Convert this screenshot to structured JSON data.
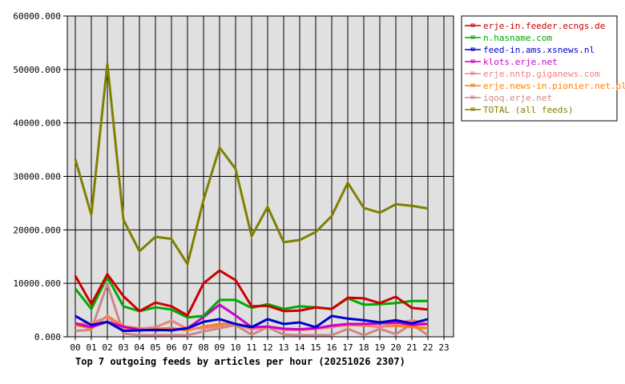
{
  "chart_data": {
    "type": "line",
    "title": "Top 7 outgoing feeds by articles per hour (20251026 2307)",
    "xlabel": "",
    "ylabel": "",
    "ylim": [
      0,
      60000
    ],
    "y_ticks": [
      "0.000",
      "10000.000",
      "20000.000",
      "30000.000",
      "40000.000",
      "50000.000",
      "60000.000"
    ],
    "categories": [
      "00",
      "01",
      "02",
      "03",
      "04",
      "05",
      "06",
      "07",
      "08",
      "09",
      "10",
      "11",
      "12",
      "13",
      "14",
      "15",
      "16",
      "17",
      "18",
      "19",
      "20",
      "21",
      "22",
      "23"
    ],
    "grid": true,
    "legend_position": "right",
    "series": [
      {
        "name": "erje-in.feeder.ecngs.de",
        "color": "#cc0000",
        "values": [
          11400,
          6100,
          11700,
          7600,
          4800,
          6400,
          5700,
          4000,
          10000,
          12400,
          10600,
          5700,
          5800,
          4800,
          4900,
          5500,
          5200,
          7300,
          7200,
          6300,
          7500,
          5400,
          5100
        ]
      },
      {
        "name": "n.hasname.com",
        "color": "#00aa00",
        "values": [
          9000,
          5200,
          11200,
          5700,
          4800,
          5500,
          5100,
          3600,
          3900,
          6900,
          6900,
          5400,
          6100,
          5200,
          5700,
          5500,
          5200,
          7200,
          6000,
          6100,
          6300,
          6700,
          6700
        ]
      },
      {
        "name": "feed-in.ams.xsnews.nl",
        "color": "#0000cc",
        "values": [
          3900,
          2200,
          2800,
          1100,
          1200,
          1300,
          1200,
          1600,
          2800,
          3300,
          2400,
          1800,
          3300,
          2400,
          2700,
          1800,
          3900,
          3400,
          3100,
          2700,
          3100,
          2500,
          3300
        ]
      },
      {
        "name": "klots.erje.net",
        "color": "#cc00cc",
        "values": [
          2500,
          1800,
          2800,
          1900,
          1300,
          1200,
          1300,
          1600,
          3700,
          6000,
          4000,
          1800,
          1900,
          1500,
          1400,
          1600,
          2100,
          2400,
          2400,
          2500,
          2700,
          2200,
          2400
        ]
      },
      {
        "name": "erje.nntp.giganews.com",
        "color": "#f08080",
        "values": [
          2400,
          2500,
          3700,
          1500,
          1500,
          1800,
          3000,
          1500,
          1600,
          2000,
          2400,
          1400,
          1900,
          1300,
          1300,
          1500,
          1800,
          2400,
          2200,
          1800,
          2500,
          3100,
          2400
        ]
      },
      {
        "name": "erje.news-in.pionier.net.pl",
        "color": "#ff8000",
        "values": [
          2200,
          1600,
          3900,
          1900,
          1600,
          1500,
          1600,
          1200,
          1900,
          2400,
          2400,
          1600,
          1900,
          1500,
          1300,
          1500,
          1900,
          2200,
          2100,
          1900,
          2100,
          1800,
          1600
        ]
      },
      {
        "name": "iqoq.erje.net",
        "color": "#cc8888",
        "values": [
          1100,
          1300,
          9900,
          600,
          300,
          300,
          300,
          300,
          1000,
          1600,
          2200,
          400,
          1800,
          400,
          300,
          300,
          300,
          1500,
          300,
          1500,
          500,
          2400,
          300
        ]
      },
      {
        "name": "TOTAL (all feeds)",
        "color": "#808000",
        "values": [
          33200,
          22800,
          51100,
          21900,
          16000,
          18700,
          18300,
          13600,
          25600,
          35400,
          31400,
          18800,
          24300,
          17700,
          18100,
          19600,
          22600,
          28800,
          24100,
          23200,
          24800,
          24500,
          24000
        ]
      }
    ]
  }
}
